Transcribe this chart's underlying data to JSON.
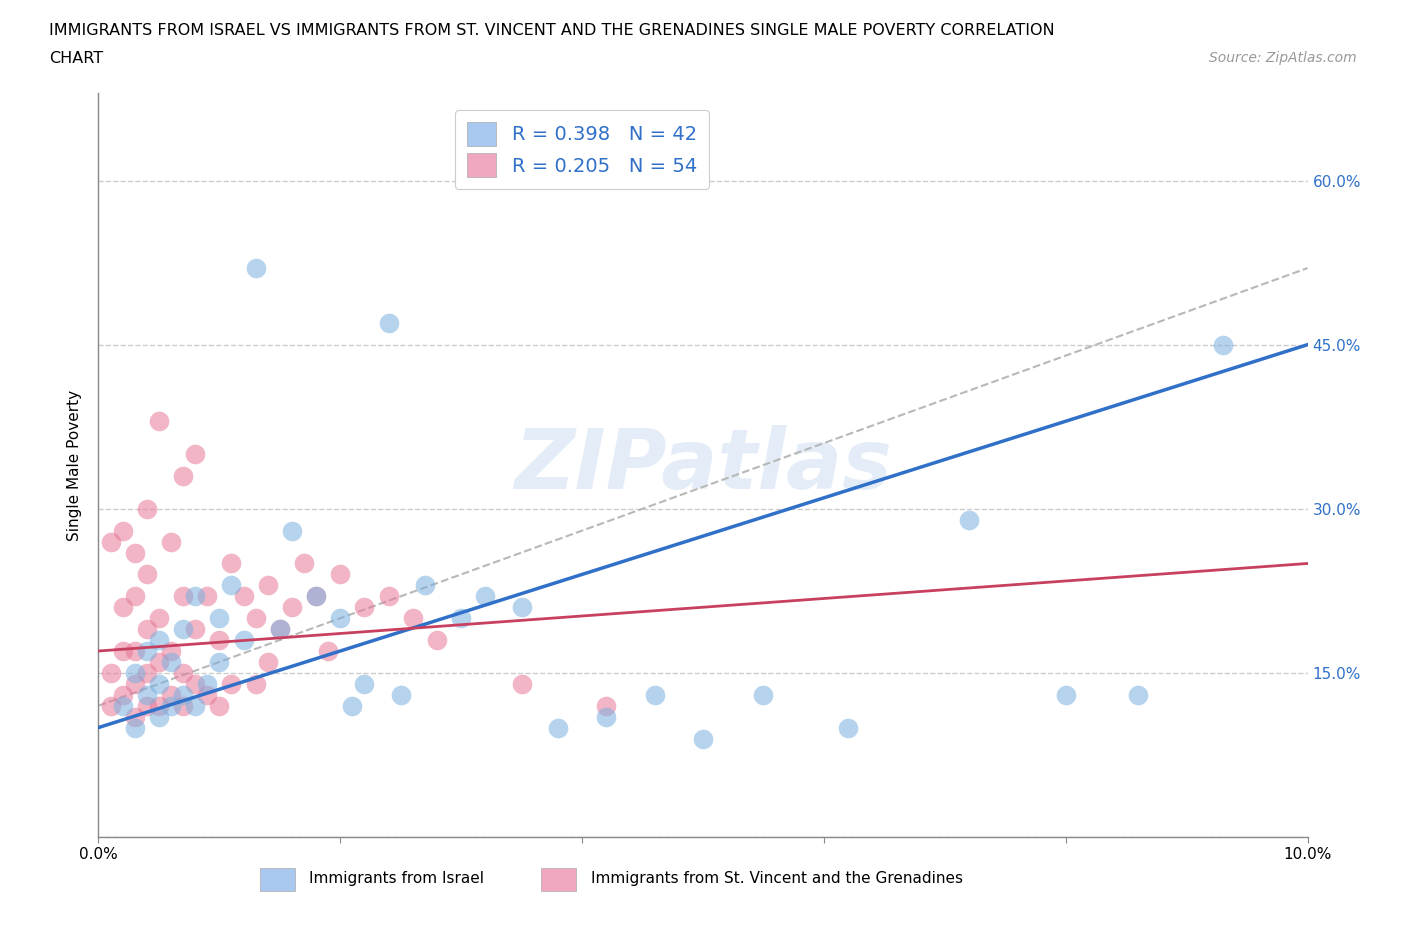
{
  "title_line1": "IMMIGRANTS FROM ISRAEL VS IMMIGRANTS FROM ST. VINCENT AND THE GRENADINES SINGLE MALE POVERTY CORRELATION",
  "title_line2": "CHART",
  "source_text": "Source: ZipAtlas.com",
  "ylabel": "Single Male Poverty",
  "watermark": "ZIPatlas",
  "legend_israel": {
    "R": 0.398,
    "N": 42,
    "color": "#a8c8f0"
  },
  "legend_svg": {
    "R": 0.205,
    "N": 54,
    "color": "#f0a8c0"
  },
  "israel_color": "#7ab0e0",
  "svg_color": "#e87898",
  "trend_israel_color": "#3070c8",
  "trend_svg_color": "#c84060",
  "trend_combined_color": "#b8b8b8",
  "xlim": [
    0.0,
    0.1
  ],
  "ylim": [
    0.0,
    0.68
  ],
  "xticks": [
    0.0,
    0.02,
    0.04,
    0.06,
    0.08,
    0.1
  ],
  "ytick_positions": [
    0.0,
    0.15,
    0.3,
    0.45,
    0.6
  ],
  "ytick_labels": [
    "",
    "15.0%",
    "30.0%",
    "45.0%",
    "60.0%"
  ],
  "grid_color": "#cccccc",
  "israel_x": [
    0.002,
    0.003,
    0.003,
    0.004,
    0.004,
    0.005,
    0.005,
    0.005,
    0.006,
    0.006,
    0.007,
    0.007,
    0.008,
    0.008,
    0.009,
    0.01,
    0.01,
    0.011,
    0.012,
    0.013,
    0.015,
    0.016,
    0.018,
    0.02,
    0.021,
    0.022,
    0.024,
    0.025,
    0.027,
    0.03,
    0.032,
    0.035,
    0.038,
    0.042,
    0.046,
    0.05,
    0.055,
    0.062,
    0.072,
    0.08,
    0.086,
    0.093
  ],
  "israel_y": [
    0.12,
    0.1,
    0.15,
    0.13,
    0.17,
    0.11,
    0.14,
    0.18,
    0.12,
    0.16,
    0.13,
    0.19,
    0.12,
    0.22,
    0.14,
    0.16,
    0.2,
    0.23,
    0.18,
    0.52,
    0.19,
    0.28,
    0.22,
    0.2,
    0.12,
    0.14,
    0.47,
    0.13,
    0.23,
    0.2,
    0.22,
    0.21,
    0.1,
    0.11,
    0.13,
    0.09,
    0.13,
    0.1,
    0.29,
    0.13,
    0.13,
    0.45
  ],
  "svg_x": [
    0.001,
    0.001,
    0.001,
    0.002,
    0.002,
    0.002,
    0.002,
    0.003,
    0.003,
    0.003,
    0.003,
    0.003,
    0.004,
    0.004,
    0.004,
    0.004,
    0.004,
    0.005,
    0.005,
    0.005,
    0.005,
    0.006,
    0.006,
    0.006,
    0.007,
    0.007,
    0.007,
    0.007,
    0.008,
    0.008,
    0.008,
    0.009,
    0.009,
    0.01,
    0.01,
    0.011,
    0.011,
    0.012,
    0.013,
    0.013,
    0.014,
    0.014,
    0.015,
    0.016,
    0.017,
    0.018,
    0.019,
    0.02,
    0.022,
    0.024,
    0.026,
    0.028,
    0.035,
    0.042
  ],
  "svg_y": [
    0.12,
    0.15,
    0.27,
    0.13,
    0.17,
    0.21,
    0.28,
    0.11,
    0.14,
    0.17,
    0.22,
    0.26,
    0.12,
    0.15,
    0.19,
    0.24,
    0.3,
    0.12,
    0.16,
    0.2,
    0.38,
    0.13,
    0.17,
    0.27,
    0.12,
    0.15,
    0.22,
    0.33,
    0.14,
    0.19,
    0.35,
    0.13,
    0.22,
    0.12,
    0.18,
    0.14,
    0.25,
    0.22,
    0.14,
    0.2,
    0.16,
    0.23,
    0.19,
    0.21,
    0.25,
    0.22,
    0.17,
    0.24,
    0.21,
    0.22,
    0.2,
    0.18,
    0.14,
    0.12
  ],
  "title_fontsize": 11.5,
  "axis_label_fontsize": 11,
  "tick_fontsize": 11,
  "legend_fontsize": 14,
  "source_fontsize": 10
}
